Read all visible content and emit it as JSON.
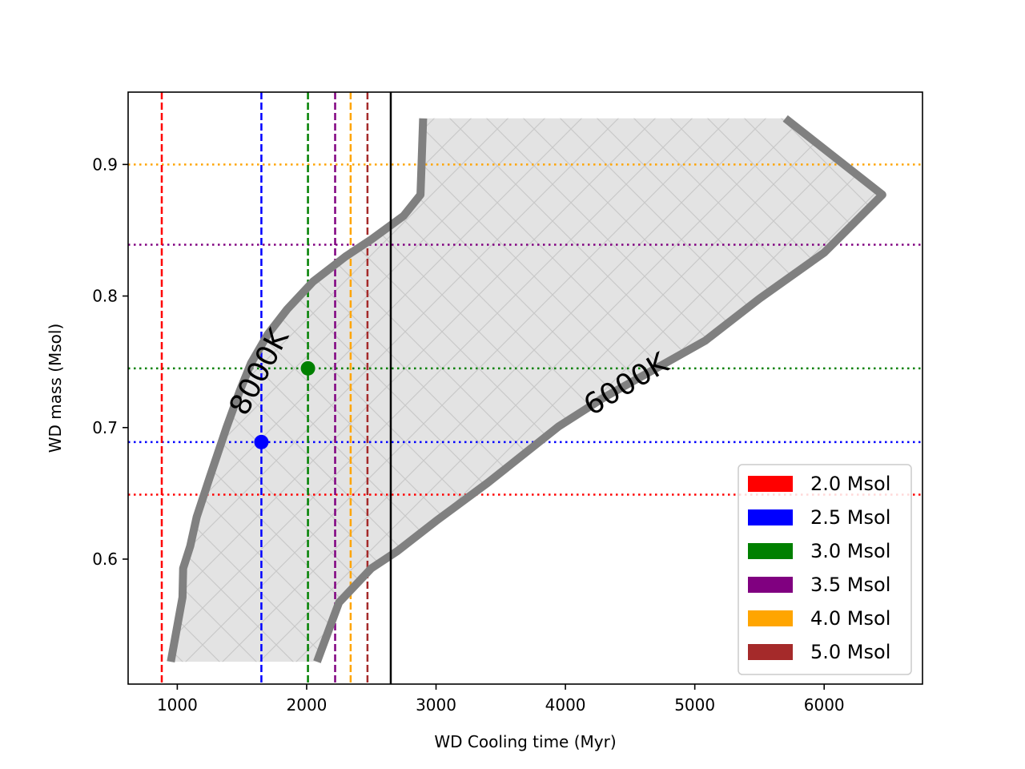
{
  "chart_data": {
    "type": "line",
    "xlabel": "WD Cooling time (Myr)",
    "ylabel": "WD mass (Msol)",
    "xlim": [
      620,
      6760
    ],
    "ylim": [
      0.505,
      0.955
    ],
    "xticks": [
      1000,
      2000,
      3000,
      4000,
      5000,
      6000
    ],
    "xtick_labels": [
      "1000",
      "2000",
      "3000",
      "4000",
      "5000",
      "6000"
    ],
    "yticks": [
      0.6,
      0.7,
      0.8,
      0.9
    ],
    "ytick_labels": [
      "0.6",
      "0.7",
      "0.8",
      "0.9"
    ],
    "grid": false,
    "legend_position": "lower-right",
    "region": {
      "fill": "#e3e3e3",
      "hatch": "cross-hatch",
      "description_source": "shaded area between the two isotherms"
    },
    "isotherms": [
      {
        "label": "8000K",
        "color": "#808080",
        "x": [
          950,
          1040,
          1045,
          1100,
          1150,
          1250,
          1380,
          1480,
          1570,
          1700,
          1850,
          2050,
          2300,
          2500,
          2750,
          2880,
          2890,
          2900
        ],
        "y": [
          0.522,
          0.571,
          0.593,
          0.61,
          0.632,
          0.662,
          0.7,
          0.727,
          0.749,
          0.771,
          0.79,
          0.811,
          0.83,
          0.843,
          0.861,
          0.877,
          0.905,
          0.935
        ]
      },
      {
        "label": "6000K",
        "color": "#808080",
        "x": [
          2080,
          2250,
          2500,
          2700,
          3000,
          3400,
          3950,
          4300,
          4700,
          5080,
          5500,
          6000,
          6450,
          5700
        ],
        "y": [
          0.522,
          0.567,
          0.593,
          0.606,
          0.629,
          0.658,
          0.701,
          0.723,
          0.745,
          0.766,
          0.798,
          0.833,
          0.877,
          0.935
        ]
      }
    ],
    "stars": [
      {
        "name": "2.0 Msol",
        "color": "#ff0000",
        "cooling_time": 880,
        "mass": 0.649
      },
      {
        "name": "2.5 Msol",
        "color": "#0000ff",
        "cooling_time": 1650,
        "mass": 0.689,
        "point": true
      },
      {
        "name": "3.0 Msol",
        "color": "#008000",
        "cooling_time": 2010,
        "mass": 0.745,
        "point": true
      },
      {
        "name": "3.5 Msol",
        "color": "#800080",
        "cooling_time": 2220,
        "mass": 0.839
      },
      {
        "name": "4.0 Msol",
        "color": "#ffa500",
        "cooling_time": 2340,
        "mass": 0.9
      },
      {
        "name": "5.0 Msol",
        "color": "#a52a2a",
        "cooling_time": 2470,
        "mass": null
      }
    ],
    "reference_line": {
      "x": 2650,
      "color": "#000000"
    }
  }
}
